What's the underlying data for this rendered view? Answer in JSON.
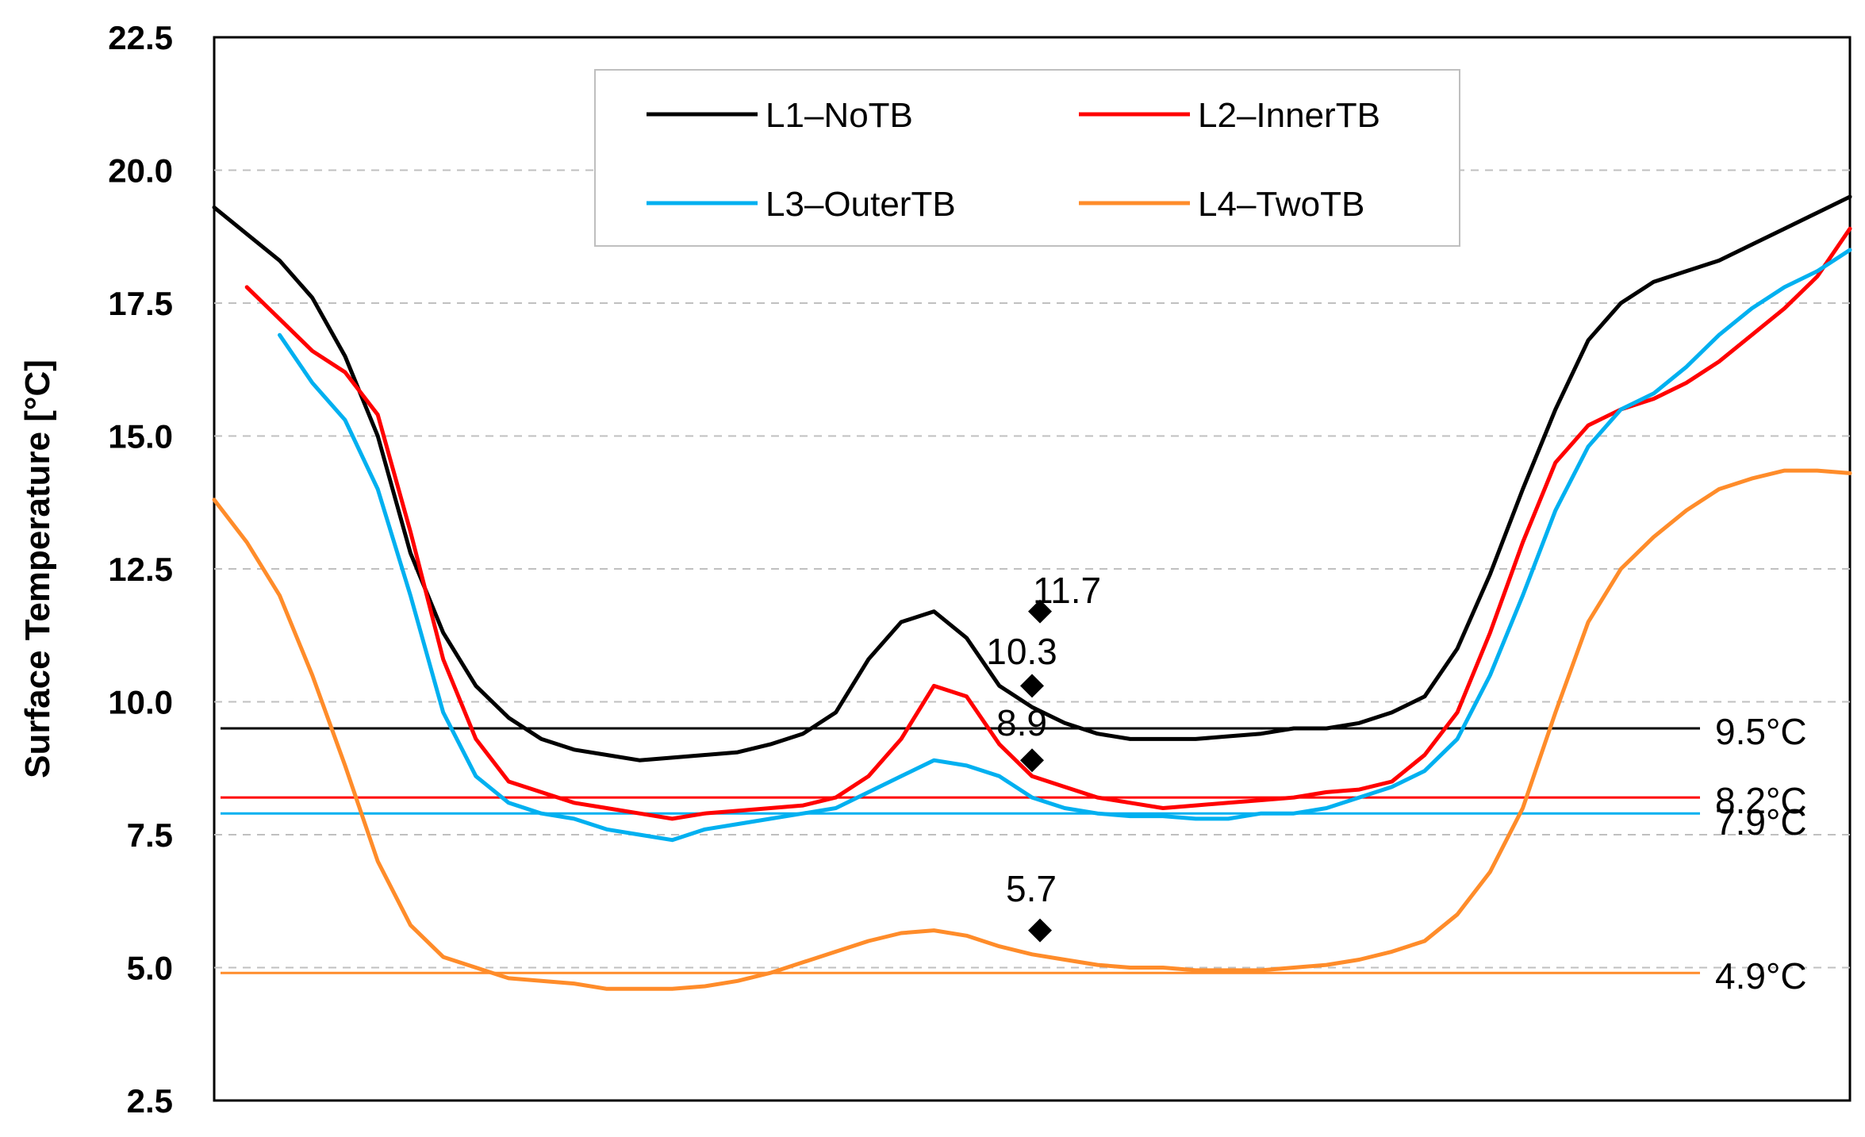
{
  "chart_data": {
    "type": "line",
    "title": "",
    "xlabel": "",
    "ylabel": "Surface Temperature [°C]",
    "ylim": [
      2.5,
      22.5
    ],
    "yticks": [
      "2.5",
      "5.0",
      "7.5",
      "10.0",
      "12.5",
      "15.0",
      "17.5",
      "20.0",
      "22.5"
    ],
    "xlim": [
      0,
      100
    ],
    "grid": "horizontal dashed",
    "legend": {
      "position": "top-center"
    },
    "series": [
      {
        "name": "L1–NoTB",
        "color": "#000000",
        "x": [
          0,
          2,
          4,
          6,
          8,
          10,
          12,
          14,
          16,
          18,
          20,
          22,
          24,
          26,
          28,
          30,
          32,
          34,
          36,
          38,
          40,
          42,
          44,
          46,
          48,
          50,
          52,
          54,
          56,
          58,
          60,
          62,
          64,
          66,
          68,
          70,
          72,
          74,
          76,
          78,
          80,
          82,
          84,
          86,
          88,
          90,
          92,
          94,
          96,
          98,
          100
        ],
        "values": [
          19.3,
          18.8,
          18.3,
          17.6,
          16.5,
          15.0,
          12.8,
          11.3,
          10.3,
          9.7,
          9.3,
          9.1,
          9.0,
          8.9,
          8.95,
          9.0,
          9.05,
          9.2,
          9.4,
          9.8,
          10.8,
          11.5,
          11.7,
          11.2,
          10.3,
          9.9,
          9.6,
          9.4,
          9.3,
          9.3,
          9.3,
          9.35,
          9.4,
          9.5,
          9.5,
          9.6,
          9.8,
          10.1,
          11.0,
          12.4,
          14.0,
          15.5,
          16.8,
          17.5,
          17.9,
          18.1,
          18.3,
          18.6,
          18.9,
          19.2,
          19.5
        ]
      },
      {
        "name": "L2–InnerTB",
        "color": "#ff0000",
        "x": [
          2,
          4,
          6,
          8,
          10,
          12,
          14,
          16,
          18,
          20,
          22,
          24,
          26,
          28,
          30,
          32,
          34,
          36,
          38,
          40,
          42,
          44,
          46,
          48,
          50,
          52,
          54,
          56,
          58,
          60,
          62,
          64,
          66,
          68,
          70,
          72,
          74,
          76,
          78,
          80,
          82,
          84,
          86,
          88,
          90,
          92,
          94,
          96,
          98,
          100
        ],
        "values": [
          17.8,
          17.2,
          16.6,
          16.2,
          15.4,
          13.2,
          10.8,
          9.3,
          8.5,
          8.3,
          8.1,
          8.0,
          7.9,
          7.8,
          7.9,
          7.95,
          8.0,
          8.05,
          8.2,
          8.6,
          9.3,
          10.3,
          10.1,
          9.2,
          8.6,
          8.4,
          8.2,
          8.1,
          8.0,
          8.05,
          8.1,
          8.15,
          8.2,
          8.3,
          8.35,
          8.5,
          9.0,
          9.8,
          11.3,
          13.0,
          14.5,
          15.2,
          15.5,
          15.7,
          16.0,
          16.4,
          16.9,
          17.4,
          18.0,
          18.9
        ]
      },
      {
        "name": "L3–OuterTB",
        "color": "#00b0f0",
        "x": [
          4,
          6,
          8,
          10,
          12,
          14,
          16,
          18,
          20,
          22,
          24,
          26,
          28,
          30,
          32,
          34,
          36,
          38,
          40,
          42,
          44,
          46,
          48,
          50,
          52,
          54,
          56,
          58,
          60,
          62,
          64,
          66,
          68,
          70,
          72,
          74,
          76,
          78,
          80,
          82,
          84,
          86,
          88,
          90,
          92,
          94,
          96,
          98,
          100
        ],
        "values": [
          16.9,
          16.0,
          15.3,
          14.0,
          12.0,
          9.8,
          8.6,
          8.1,
          7.9,
          7.8,
          7.6,
          7.5,
          7.4,
          7.6,
          7.7,
          7.8,
          7.9,
          8.0,
          8.3,
          8.6,
          8.9,
          8.8,
          8.6,
          8.2,
          8.0,
          7.9,
          7.85,
          7.85,
          7.8,
          7.8,
          7.9,
          7.9,
          8.0,
          8.2,
          8.4,
          8.7,
          9.3,
          10.5,
          12.0,
          13.6,
          14.8,
          15.5,
          15.8,
          16.3,
          16.9,
          17.4,
          17.8,
          18.1,
          18.5
        ]
      },
      {
        "name": "L4–TwoTB",
        "color": "#ff8c2a",
        "x": [
          0,
          2,
          4,
          6,
          8,
          10,
          12,
          14,
          16,
          18,
          20,
          22,
          24,
          26,
          28,
          30,
          32,
          34,
          36,
          38,
          40,
          42,
          44,
          46,
          48,
          50,
          52,
          54,
          56,
          58,
          60,
          62,
          64,
          66,
          68,
          70,
          72,
          74,
          76,
          78,
          80,
          82,
          84,
          86,
          88,
          90,
          92,
          94,
          96,
          98,
          100
        ],
        "values": [
          13.8,
          13.0,
          12.0,
          10.5,
          8.8,
          7.0,
          5.8,
          5.2,
          5.0,
          4.8,
          4.75,
          4.7,
          4.6,
          4.6,
          4.6,
          4.65,
          4.75,
          4.9,
          5.1,
          5.3,
          5.5,
          5.65,
          5.7,
          5.6,
          5.4,
          5.25,
          5.15,
          5.05,
          5.0,
          5.0,
          4.95,
          4.95,
          4.95,
          5.0,
          5.05,
          5.15,
          5.3,
          5.5,
          6.0,
          6.8,
          8.0,
          9.8,
          11.5,
          12.5,
          13.1,
          13.6,
          14.0,
          14.2,
          14.35,
          14.35,
          14.3
        ]
      }
    ],
    "reference_lines": [
      {
        "value": 9.5,
        "label": "9.5°C",
        "color": "#000000"
      },
      {
        "value": 8.2,
        "label": "8.2°C",
        "color": "#ff0000"
      },
      {
        "value": 7.9,
        "label": "7.9°C",
        "color": "#00b0f0"
      },
      {
        "value": 4.9,
        "label": "4.9°C",
        "color": "#ff8c2a"
      }
    ],
    "peak_markers": [
      {
        "x": 50,
        "value": 11.7,
        "label": "11.7"
      },
      {
        "x": 50,
        "value": 10.3,
        "label": "10.3"
      },
      {
        "x": 50,
        "value": 8.9,
        "label": "8.9"
      },
      {
        "x": 50,
        "value": 5.7,
        "label": "5.7"
      }
    ]
  }
}
